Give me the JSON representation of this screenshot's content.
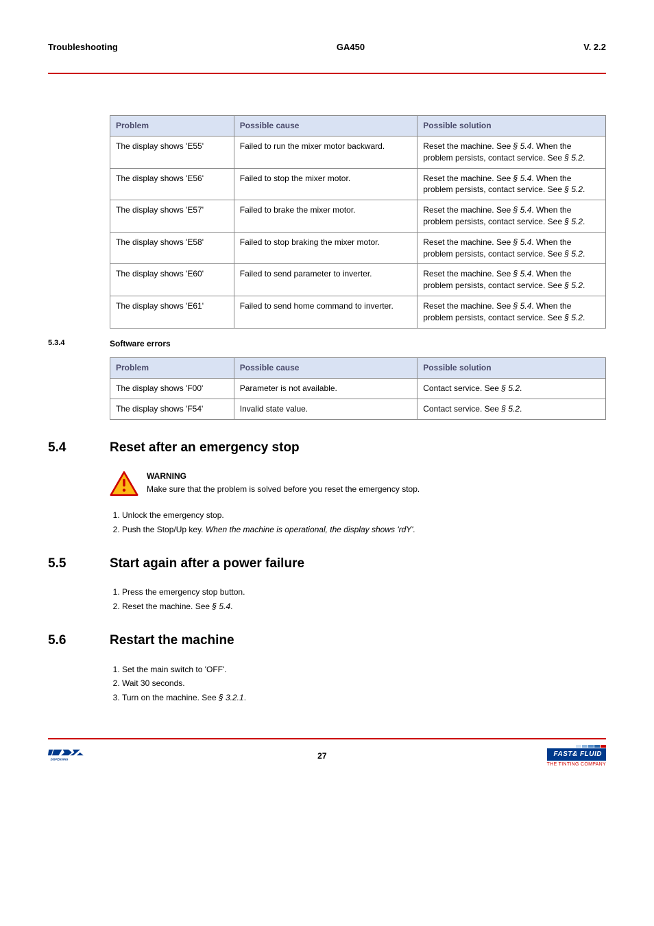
{
  "header": {
    "left": "Troubleshooting",
    "center": "GA450",
    "right": "V. 2.2"
  },
  "table1": {
    "headers": {
      "problem": "Problem",
      "cause": "Possible cause",
      "solution": "Possible solution"
    },
    "rows": [
      {
        "p": "The display shows 'E55'",
        "c": "Failed to run the mixer motor backward.",
        "s1": "Reset the machine. See ",
        "sref1": "§ 5.4",
        "s2": ". When the problem persists, contact service. See ",
        "sref2": "§ 5.2",
        "s3": "."
      },
      {
        "p": "The display shows 'E56'",
        "c": "Failed to stop the mixer motor.",
        "s1": "Reset the machine. See ",
        "sref1": "§ 5.4",
        "s2": ". When the problem persists, contact service. See ",
        "sref2": "§ 5.2",
        "s3": "."
      },
      {
        "p": "The display shows 'E57'",
        "c": "Failed to brake the mixer motor.",
        "s1": "Reset the machine. See ",
        "sref1": "§ 5.4",
        "s2": ". When the problem persists, contact service. See ",
        "sref2": "§ 5.2",
        "s3": "."
      },
      {
        "p": "The display shows 'E58'",
        "c": "Failed to stop braking the mixer motor.",
        "s1": "Reset the machine. See ",
        "sref1": "§ 5.4",
        "s2": ". When the problem persists, contact service. See ",
        "sref2": "§ 5.2",
        "s3": "."
      },
      {
        "p": "The display shows 'E60'",
        "c": "Failed to send parameter to inverter.",
        "s1": "Reset the machine. See ",
        "sref1": "§ 5.4",
        "s2": ". When the problem persists, contact service. See ",
        "sref2": "§ 5.2",
        "s3": "."
      },
      {
        "p": "The display shows 'E61'",
        "c": "Failed to send home command to inverter.",
        "s1": "Reset the machine. See ",
        "sref1": "§ 5.4",
        "s2": ". When the problem persists, contact service. See ",
        "sref2": "§ 5.2",
        "s3": "."
      }
    ]
  },
  "subsec534": {
    "num": "5.3.4",
    "title": "Software errors"
  },
  "table2": {
    "headers": {
      "problem": "Problem",
      "cause": "Possible cause",
      "solution": "Possible solution"
    },
    "rows": [
      {
        "p": "The display shows 'F00'",
        "c": "Parameter is not available.",
        "s1": "Contact service. See ",
        "sref": "§ 5.2",
        "s2": "."
      },
      {
        "p": "The display shows 'F54'",
        "c": "Invalid state value.",
        "s1": "Contact service. See ",
        "sref": "§ 5.2",
        "s2": "."
      }
    ]
  },
  "sec54": {
    "num": "5.4",
    "title": "Reset after an emergency stop"
  },
  "warning": {
    "label": "WARNING",
    "text": "Make sure that the problem is solved before you reset the emergency stop."
  },
  "steps54": {
    "s1": "Unlock the emergency stop.",
    "s2a": "Push the Stop/Up key. ",
    "s2b": "When the machine is operational, the display shows 'rdY'."
  },
  "sec55": {
    "num": "5.5",
    "title": "Start again after a power failure"
  },
  "steps55": {
    "s1": "Press the emergency stop button.",
    "s2a": "Reset the machine. See ",
    "s2ref": "§ 5.4",
    "s2b": "."
  },
  "sec56": {
    "num": "5.6",
    "title": "Restart the machine"
  },
  "steps56": {
    "s1": "Set the main switch to 'OFF'.",
    "s2": "Wait 30 seconds.",
    "s3a": "Turn on the machine. See ",
    "s3ref": "§ 3.2.1",
    "s3b": "."
  },
  "footer": {
    "page": "27",
    "idex_sub": "DISPENSING",
    "ff_brand": "FAST& FLUID",
    "ff_tag": "THE TINTING COMPANY"
  },
  "colors": {
    "red": "#c00",
    "header_bg": "#d9e2f3",
    "border": "#888",
    "blue": "#003a8c"
  }
}
